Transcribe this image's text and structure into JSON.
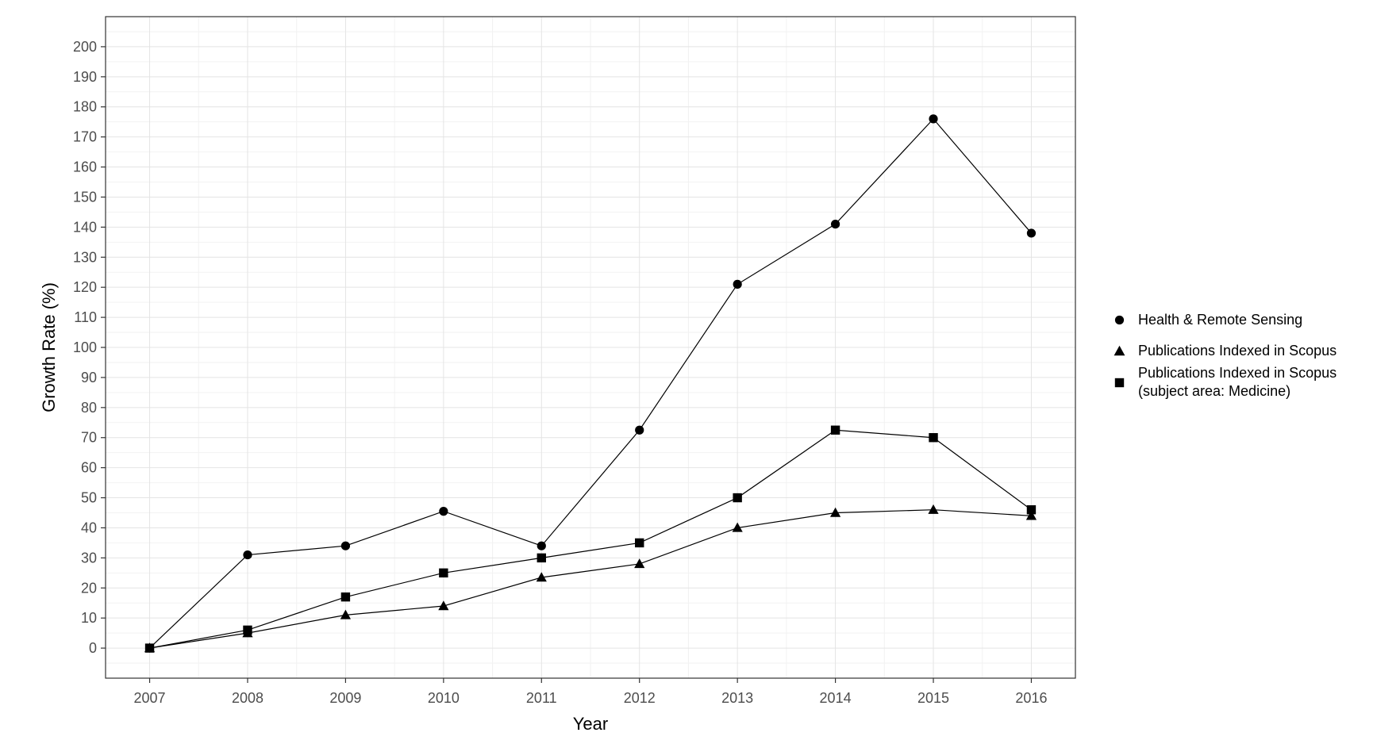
{
  "figure": {
    "xlabel": "Year",
    "ylabel": "Growth Rate (%)"
  },
  "legend": {
    "position": "right",
    "items": [
      {
        "marker": "circle",
        "label": "Health & Remote Sensing"
      },
      {
        "marker": "triangle",
        "label": "Publications Indexed in Scopus"
      },
      {
        "marker": "square",
        "label": "Publications Indexed in Scopus",
        "label_line2": "(subject area: Medicine)"
      }
    ]
  },
  "chart_data": {
    "type": "line",
    "title": "",
    "xlabel": "Year",
    "ylabel": "Growth Rate (%)",
    "x": [
      2007,
      2008,
      2009,
      2010,
      2011,
      2012,
      2013,
      2014,
      2015,
      2016
    ],
    "series": [
      {
        "name": "Health & Remote Sensing",
        "marker": "circle",
        "color": "#000000",
        "values": [
          0,
          31,
          34,
          45.5,
          34,
          72.5,
          121,
          141,
          176,
          138
        ]
      },
      {
        "name": "Publications Indexed in Scopus",
        "marker": "triangle",
        "color": "#000000",
        "values": [
          0,
          5,
          11,
          14,
          23.5,
          28,
          40,
          45,
          46,
          44
        ]
      },
      {
        "name": "Publications Indexed in Scopus (subject area: Medicine)",
        "marker": "square",
        "color": "#000000",
        "values": [
          0,
          6,
          17,
          25,
          30,
          35,
          50,
          72.5,
          70,
          46
        ]
      }
    ],
    "xticks": [
      2007,
      2008,
      2009,
      2010,
      2011,
      2012,
      2013,
      2014,
      2015,
      2016
    ],
    "yticks": [
      0,
      10,
      20,
      30,
      40,
      50,
      60,
      70,
      80,
      90,
      100,
      110,
      120,
      130,
      140,
      150,
      160,
      170,
      180,
      190,
      200
    ],
    "xlim": [
      2006.55,
      2016.45
    ],
    "ylim": [
      -10,
      210
    ],
    "grid": true,
    "legend_position": "right",
    "colors": {
      "line": "#000000",
      "axis_text": "#4d4d4d",
      "axis_title": "#000000",
      "panel_border": "#333333",
      "grid_major": "#e4e4e4",
      "grid_minor": "#f2f2f2",
      "background": "#ffffff"
    }
  }
}
